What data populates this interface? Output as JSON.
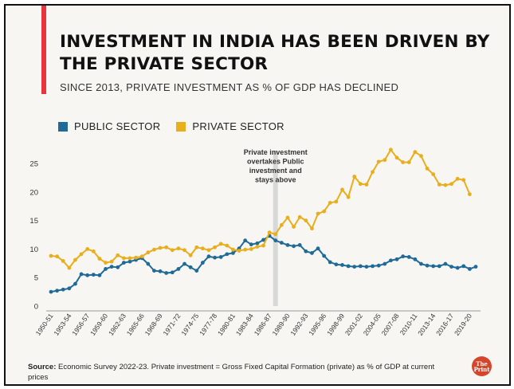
{
  "header": {
    "title": "INVESTMENT IN INDIA HAS BEEN DRIVEN BY THE PRIVATE SECTOR",
    "subtitle": "SINCE 2013, PRIVATE INVESTMENT AS % OF GDP HAS DECLINED"
  },
  "footer": {
    "source_label": "Source:",
    "source_text": "Economic Survey 2022-23. Private investment = Gross Fixed Capital Formation (private) as % of GDP at current prices",
    "logo_text": "ThePrint"
  },
  "colors": {
    "accent": "#e8343f",
    "public": "#1f6a96",
    "private": "#e8ae1c",
    "highlight": "#d2d2d2"
  },
  "chart_data": {
    "type": "line",
    "title": "INVESTMENT IN INDIA HAS BEEN DRIVEN BY THE PRIVATE SECTOR",
    "subtitle": "SINCE 2013, PRIVATE INVESTMENT AS % OF GDP HAS DECLINED",
    "xlabel": "",
    "ylabel": "",
    "ylim": [
      0,
      28
    ],
    "yticks": [
      0,
      5,
      10,
      15,
      20,
      25
    ],
    "grid": false,
    "legend_position": "top-left",
    "xticks": [
      "1950-51",
      "1953-54",
      "1956-57",
      "1959-60",
      "1962-63",
      "1965-66",
      "1968-69",
      "1971-72",
      "1974-75",
      "1977-78",
      "1980-81",
      "1983-84",
      "1986-87",
      "1989-90",
      "1992-93",
      "1995-96",
      "1998-99",
      "2001-02",
      "2004-05",
      "2007-08",
      "2010-11",
      "2013-14",
      "2016-17",
      "2019-20"
    ],
    "x_first_year": 1950,
    "x_last_year": 2020,
    "annotation": {
      "text_lines": [
        "Private investment",
        "overtakes Public",
        "investment and",
        "stays above"
      ],
      "year": 1987
    },
    "series": [
      {
        "name": "PUBLIC SECTOR",
        "color": "#1f6a96",
        "values": [
          2.5,
          2.7,
          2.9,
          3.1,
          3.9,
          5.6,
          5.4,
          5.5,
          5.4,
          6.5,
          6.9,
          6.8,
          7.6,
          7.8,
          8.1,
          8.4,
          7.4,
          6.2,
          6.1,
          5.8,
          5.9,
          6.5,
          7.4,
          6.8,
          6.2,
          7.6,
          8.7,
          8.5,
          8.6,
          9.1,
          9.3,
          10.1,
          11.5,
          10.8,
          11.0,
          11.6,
          12.3,
          11.5,
          11.1,
          10.7,
          10.5,
          10.7,
          9.6,
          9.3,
          10.1,
          8.8,
          7.7,
          7.3,
          7.2,
          7.0,
          6.9,
          7.0,
          6.9,
          7.0,
          7.1,
          7.4,
          8.0,
          8.2,
          8.7,
          8.6,
          8.2,
          7.4,
          7.1,
          7.0,
          7.0,
          7.4,
          6.9,
          6.7,
          7.0,
          6.5,
          6.9
        ]
      },
      {
        "name": "PRIVATE SECTOR",
        "color": "#e8ae1c",
        "values": [
          8.8,
          8.7,
          7.9,
          6.7,
          8.1,
          9.1,
          10.0,
          9.6,
          8.3,
          7.6,
          7.8,
          8.9,
          8.4,
          8.4,
          8.5,
          8.7,
          9.4,
          9.9,
          10.2,
          10.3,
          9.8,
          10.1,
          9.8,
          8.9,
          10.3,
          10.1,
          9.8,
          10.3,
          10.9,
          10.6,
          9.9,
          9.7,
          9.9,
          10.0,
          10.4,
          10.6,
          12.9,
          12.6,
          14.2,
          15.5,
          13.9,
          15.6,
          15.0,
          13.6,
          16.2,
          16.6,
          18.1,
          18.3,
          20.4,
          19.1,
          22.7,
          21.4,
          21.3,
          23.5,
          25.3,
          25.6,
          27.4,
          26.0,
          25.2,
          25.2,
          27.0,
          26.3,
          24.1,
          23.1,
          21.3,
          21.2,
          21.4,
          22.3,
          22.1,
          19.6,
          null
        ]
      }
    ]
  }
}
